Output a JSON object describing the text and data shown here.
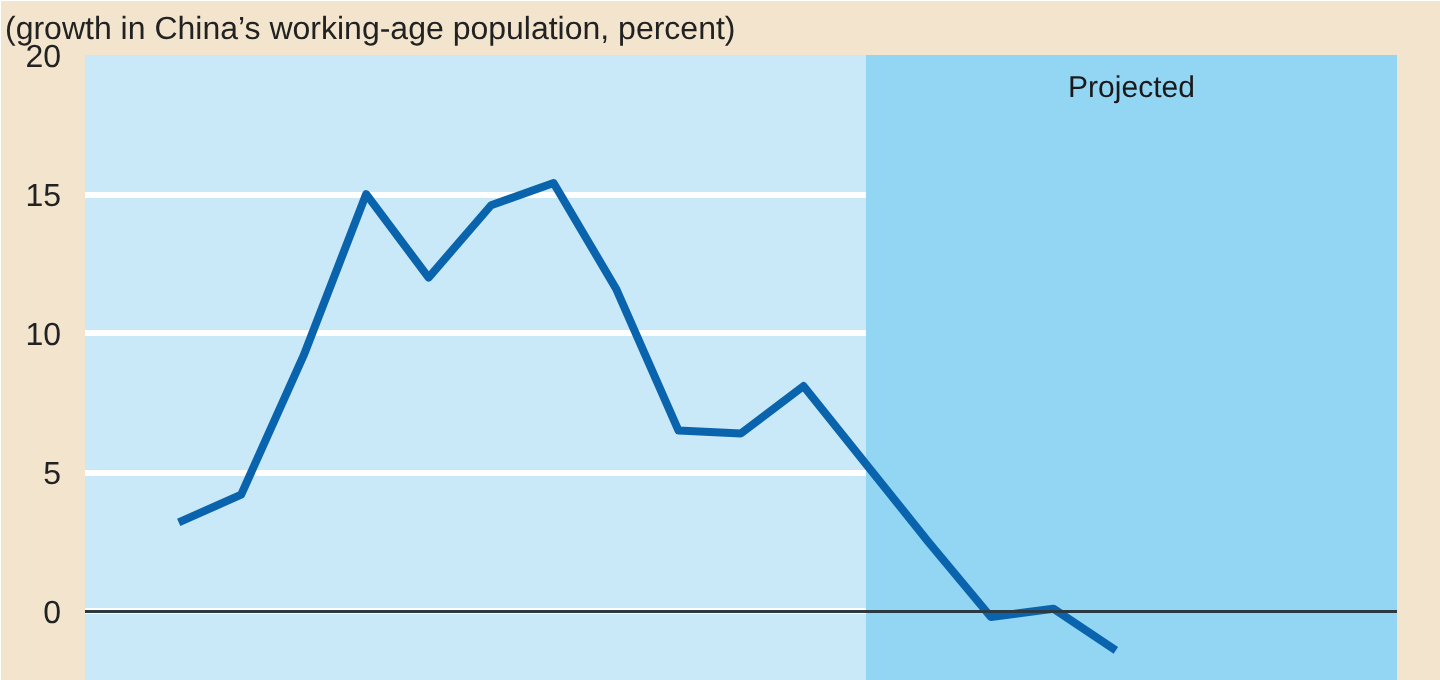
{
  "chart_data": {
    "type": "line",
    "subtitle": "(growth in China’s working-age population, percent)",
    "categories": [
      null,
      null,
      null,
      null,
      null,
      null,
      null,
      null,
      null,
      null,
      null,
      null,
      null,
      null,
      null,
      null,
      null,
      null,
      null,
      null,
      null
    ],
    "series": [
      {
        "color": "#0a64ad",
        "values": [
          null,
          3.2,
          4.2,
          9.2,
          15.0,
          12.0,
          14.6,
          15.4,
          11.6,
          6.5,
          6.4,
          8.1,
          5.3,
          2.5,
          -0.2,
          0.1,
          -1.4,
          null,
          null,
          null,
          null
        ]
      }
    ],
    "ylim": [
      -2.5,
      20
    ],
    "yticks": [
      0,
      5,
      10,
      15,
      20
    ],
    "grid": "y",
    "ref_lines": [
      {
        "axis": "y",
        "value": 0,
        "color": "#2b3a42"
      }
    ],
    "annotations": [
      "Projected"
    ],
    "line_style": "solid",
    "marker": "none"
  }
}
